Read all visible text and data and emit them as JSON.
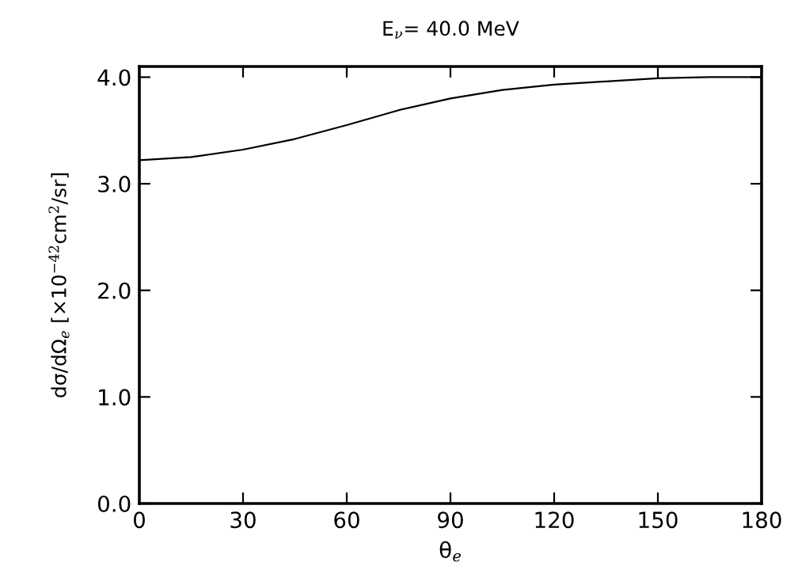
{
  "chart_data": {
    "type": "line",
    "title": "E$_{ν}$= 40.0 MeV",
    "xlabel": "θ$_{e}$",
    "ylabel": "dσ/dΩ$_{e}$ [×10$^{−42}$cm$^{2}$/sr]",
    "x": [
      0,
      15,
      30,
      45,
      60,
      75,
      90,
      105,
      120,
      135,
      150,
      165,
      180
    ],
    "series": [
      {
        "color": "#000000",
        "values": [
          3.22,
          3.25,
          3.32,
          3.42,
          3.55,
          3.69,
          3.8,
          3.88,
          3.93,
          3.96,
          3.99,
          4.0,
          4.0
        ]
      }
    ],
    "xlim": [
      0,
      180
    ],
    "ylim": [
      0,
      4.1
    ],
    "xticks": [
      0,
      30,
      60,
      90,
      120,
      150,
      180
    ],
    "yticks": [
      {
        "value": 0,
        "label": "0.0"
      },
      {
        "value": 1,
        "label": "1.0"
      },
      {
        "value": 2,
        "label": "2.0"
      },
      {
        "value": 3,
        "label": "3.0"
      },
      {
        "value": 4,
        "label": "4.0"
      }
    ],
    "grid": false,
    "legend": false
  }
}
